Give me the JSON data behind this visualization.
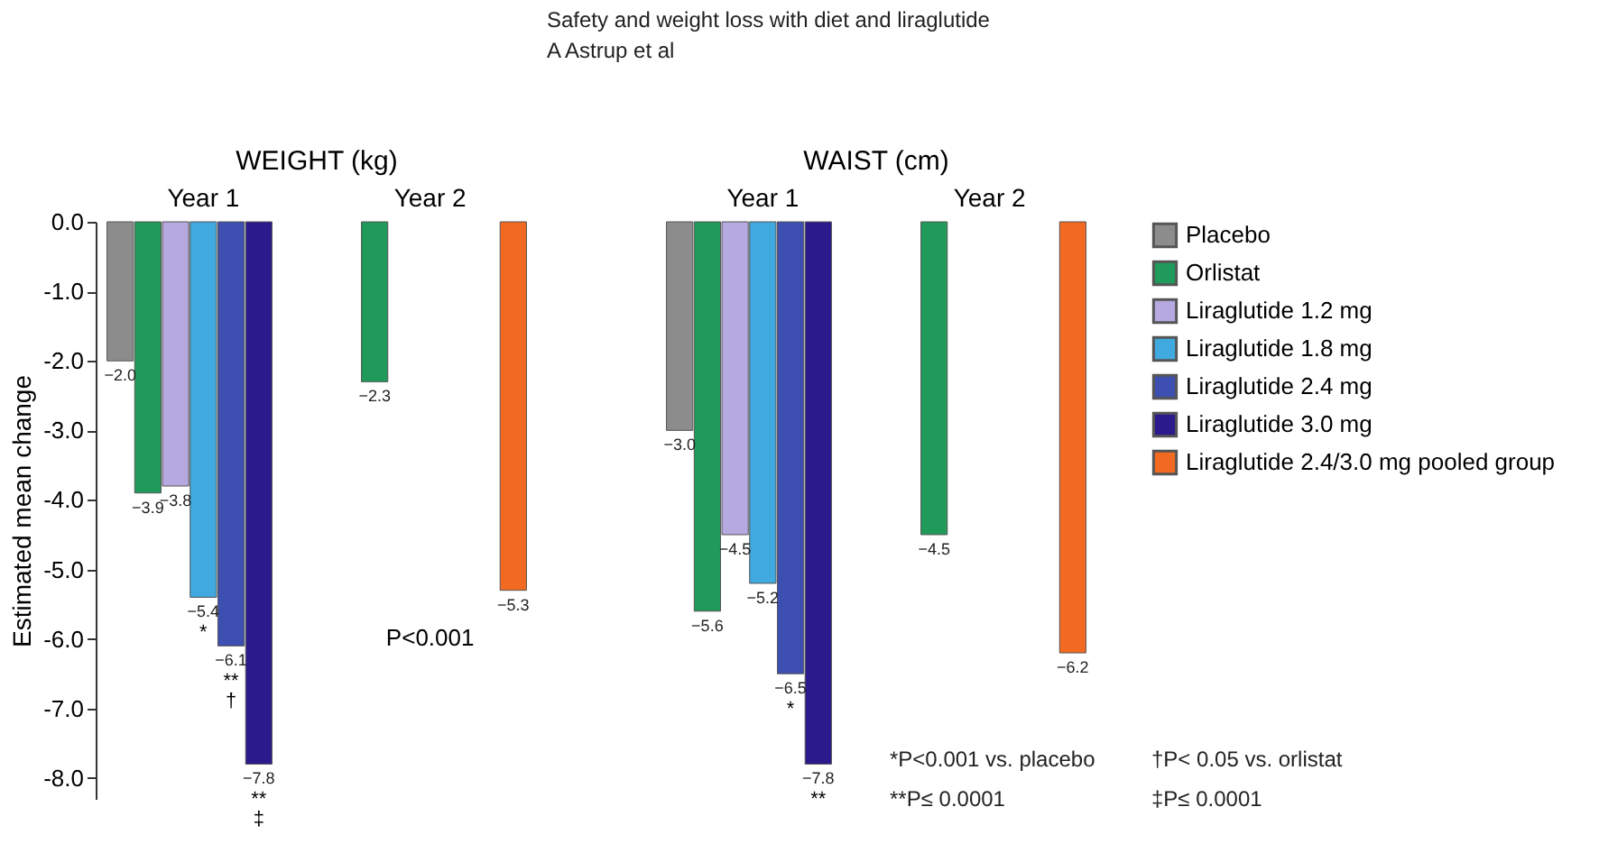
{
  "chart_data": [
    {
      "type": "bar",
      "title": "WEIGHT (kg)",
      "ylabel": "Estimated mean change",
      "categories": [
        "Year 1",
        "Year 2"
      ],
      "ylim": [
        -8.3,
        0
      ],
      "yticks": [
        {
          "value": 0,
          "label": "0.0"
        },
        {
          "value": -1,
          "label": "-1.0"
        },
        {
          "value": -2,
          "label": "-2.0"
        },
        {
          "value": -3,
          "label": "-3.0"
        },
        {
          "value": -4,
          "label": "-4.0"
        },
        {
          "value": -5,
          "label": "-5.0"
        },
        {
          "value": -6,
          "label": "-6.0"
        },
        {
          "value": -7,
          "label": "-7.0"
        },
        {
          "value": -8,
          "label": "-8.0"
        }
      ],
      "grid": false,
      "legend": "right",
      "series": [
        {
          "name": "Placebo",
          "color": "#8c8c8c",
          "values": [
            -2.0,
            null
          ],
          "value_labels": [
            "−2.0",
            null
          ]
        },
        {
          "name": "Orlistat",
          "color": "#1f9a5a",
          "values": [
            -3.9,
            -2.3
          ],
          "value_labels": [
            "−3.9",
            "−2.3"
          ]
        },
        {
          "name": "Liraglutide 1.2 mg",
          "color": "#b6a9e0",
          "values": [
            -3.8,
            null
          ],
          "value_labels": [
            "−3.8",
            null
          ]
        },
        {
          "name": "Liraglutide 1.8 mg",
          "color": "#3fa9e0",
          "values": [
            -5.4,
            null
          ],
          "value_labels": [
            "−5.4",
            null
          ]
        },
        {
          "name": "Liraglutide 2.4 mg",
          "color": "#3d4fb0",
          "values": [
            -6.1,
            null
          ],
          "value_labels": [
            "−6.1",
            null
          ]
        },
        {
          "name": "Liraglutide 3.0 mg",
          "color": "#2a1a8c",
          "values": [
            -7.8,
            null
          ],
          "value_labels": [
            "−7.8",
            null
          ]
        },
        {
          "name": "Liraglutide 2.4/3.0 mg pooled group",
          "color": "#f26a21",
          "values": [
            null,
            -5.3
          ],
          "value_labels": [
            null,
            "−5.3"
          ]
        }
      ],
      "annotations": [
        "*",
        "**",
        "†",
        "**",
        "‡",
        "P<0.001"
      ]
    },
    {
      "type": "bar",
      "title": "WAIST (cm)",
      "categories": [
        "Year 1",
        "Year 2"
      ],
      "tick_labels": "x",
      "grid": false,
      "legend": "right",
      "series": [
        {
          "name": "Placebo",
          "color": "#8c8c8c",
          "values": [
            -3.0,
            null
          ],
          "value_labels": [
            "−3.0",
            null
          ]
        },
        {
          "name": "Orlistat",
          "color": "#1f9a5a",
          "values": [
            -5.6,
            -4.5
          ],
          "value_labels": [
            "−5.6",
            "−4.5"
          ]
        },
        {
          "name": "Liraglutide 1.2 mg",
          "color": "#b6a9e0",
          "values": [
            -4.5,
            null
          ],
          "value_labels": [
            "−4.5",
            null
          ]
        },
        {
          "name": "Liraglutide 1.8 mg",
          "color": "#3fa9e0",
          "values": [
            -5.2,
            null
          ],
          "value_labels": [
            "−5.2",
            null
          ]
        },
        {
          "name": "Liraglutide 2.4 mg",
          "color": "#3d4fb0",
          "values": [
            -6.5,
            null
          ],
          "value_labels": [
            "−6.5",
            null
          ]
        },
        {
          "name": "Liraglutide 3.0 mg",
          "color": "#2a1a8c",
          "values": [
            -7.8,
            null
          ],
          "value_labels": [
            "−7.8",
            null
          ]
        },
        {
          "name": "Liraglutide 2.4/3.0 mg pooled group",
          "color": "#f26a21",
          "values": [
            null,
            -6.2
          ],
          "value_labels": [
            null,
            "−6.2"
          ]
        }
      ],
      "annotations": [
        "*",
        "**",
        "Safety and weight loss with diet and liraglutide",
        "A Astrup et al",
        "*P<0.001 vs. placebo",
        "†P< 0.05 vs. orlistat",
        "**P≤ 0.0001",
        "‡P≤ 0.0001"
      ]
    }
  ]
}
